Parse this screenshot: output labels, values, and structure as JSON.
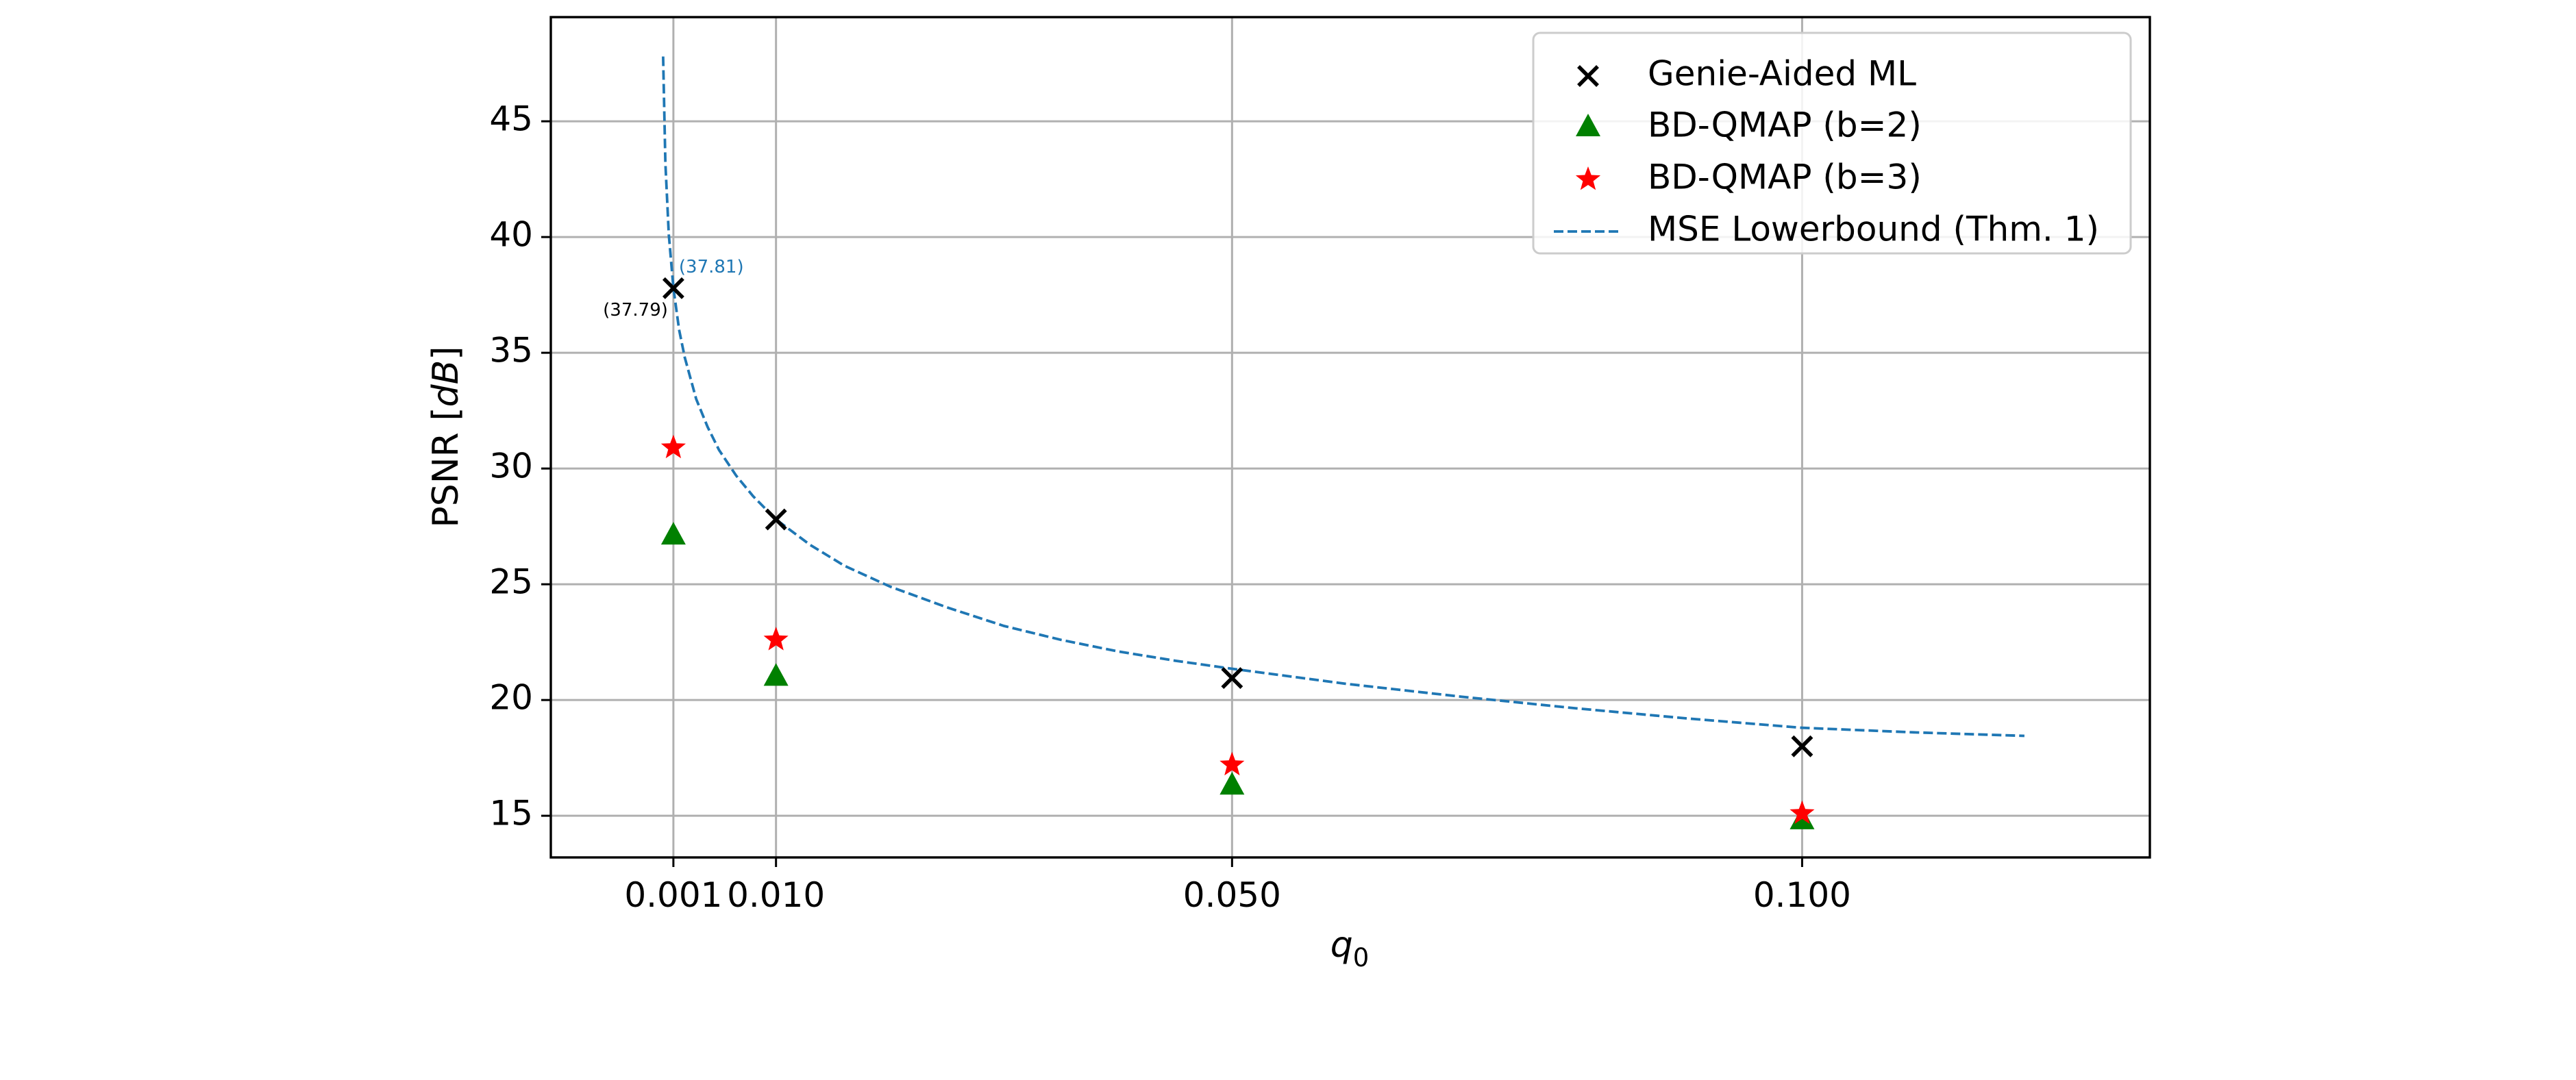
{
  "chart_data": {
    "type": "scatter",
    "xlabel": "q",
    "xlabel_sub": "0",
    "ylabel_main": "PSNR [",
    "ylabel_unit": "dB",
    "ylabel_close": "]",
    "xlim": [
      -0.00975,
      0.1305
    ],
    "ylim": [
      13.2,
      49.5
    ],
    "x_ticks": [
      0.001,
      0.01,
      0.05,
      0.1
    ],
    "x_tick_labels": [
      "0.001",
      "0.010",
      "0.050",
      "0.100"
    ],
    "y_ticks": [
      15,
      20,
      25,
      30,
      35,
      40,
      45
    ],
    "y_tick_labels": [
      "15",
      "20",
      "25",
      "30",
      "35",
      "40",
      "45"
    ],
    "grid": true,
    "legend_position": "top-right",
    "series": [
      {
        "name": "Genie-Aided ML",
        "marker": "x",
        "color": "#000000",
        "x": [
          0.001,
          0.01,
          0.05,
          0.1
        ],
        "y": [
          37.79,
          27.8,
          20.95,
          18.0
        ]
      },
      {
        "name": "BD-QMAP (b=2)",
        "marker": "triangle",
        "color": "#008000",
        "x": [
          0.001,
          0.01,
          0.05,
          0.1
        ],
        "y": [
          27.1,
          21.0,
          16.3,
          14.8
        ]
      },
      {
        "name": "BD-QMAP (b=3)",
        "marker": "star",
        "color": "#ff0000",
        "x": [
          0.001,
          0.01,
          0.05,
          0.1
        ],
        "y": [
          30.9,
          22.6,
          17.2,
          15.1
        ]
      },
      {
        "name": "MSE Lowerbound (Thm. 1)",
        "marker": "dashed-line",
        "color": "#1f77b4",
        "x": [
          0.0001,
          0.0003,
          0.0006,
          0.001,
          0.0015,
          0.002,
          0.003,
          0.004,
          0.005,
          0.0065,
          0.008,
          0.01,
          0.013,
          0.016,
          0.02,
          0.025,
          0.03,
          0.035,
          0.04,
          0.045,
          0.05,
          0.06,
          0.07,
          0.08,
          0.09,
          0.1,
          0.11,
          0.1195
        ],
        "y": [
          47.8,
          43.2,
          40.1,
          37.81,
          36.0,
          34.8,
          33.0,
          31.8,
          30.8,
          29.7,
          28.8,
          27.8,
          26.7,
          25.8,
          24.9,
          24.0,
          23.2,
          22.6,
          22.1,
          21.7,
          21.35,
          20.7,
          20.15,
          19.65,
          19.2,
          18.8,
          18.6,
          18.45
        ]
      }
    ],
    "annotations": [
      {
        "text": "(37.81)",
        "x": 0.001,
        "y": 37.81,
        "color": "#1f77b4"
      },
      {
        "text": "(37.79)",
        "x": 0.001,
        "y": 37.79,
        "color": "#000000"
      }
    ]
  }
}
